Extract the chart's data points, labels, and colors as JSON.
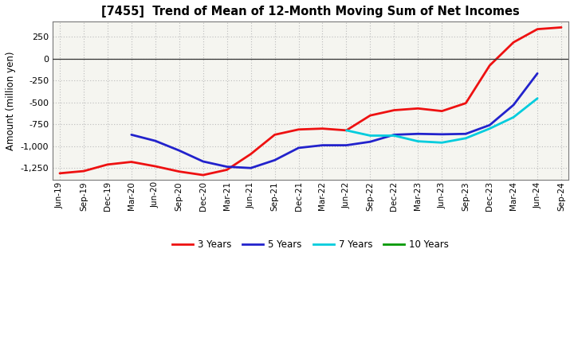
{
  "title": "[7455]  Trend of Mean of 12-Month Moving Sum of Net Incomes",
  "ylabel": "Amount (million yen)",
  "background_color": "#ffffff",
  "plot_bg_color": "#f5f5f0",
  "grid_color": "#bbbbbb",
  "x_labels": [
    "Jun-19",
    "Sep-19",
    "Dec-19",
    "Mar-20",
    "Jun-20",
    "Sep-20",
    "Dec-20",
    "Mar-21",
    "Jun-21",
    "Sep-21",
    "Dec-21",
    "Mar-22",
    "Jun-22",
    "Sep-22",
    "Dec-22",
    "Mar-23",
    "Jun-23",
    "Sep-23",
    "Dec-23",
    "Mar-24",
    "Jun-24",
    "Sep-24"
  ],
  "series": {
    "3 Years": {
      "color": "#ee1111",
      "values": [
        -1310,
        -1285,
        -1210,
        -1180,
        -1230,
        -1290,
        -1330,
        -1270,
        -1090,
        -870,
        -810,
        -800,
        -820,
        -650,
        -590,
        -570,
        -600,
        -510,
        -80,
        185,
        335,
        355
      ]
    },
    "5 Years": {
      "color": "#2222cc",
      "values": [
        null,
        null,
        null,
        -870,
        -940,
        -1050,
        -1175,
        -1235,
        -1250,
        -1160,
        -1020,
        -990,
        -990,
        -950,
        -870,
        -860,
        -865,
        -860,
        -760,
        -530,
        -170,
        null
      ]
    },
    "7 Years": {
      "color": "#00ccdd",
      "values": [
        null,
        null,
        null,
        null,
        null,
        null,
        null,
        null,
        null,
        null,
        null,
        null,
        -820,
        -880,
        -880,
        -945,
        -960,
        -910,
        -800,
        -670,
        -455,
        null
      ]
    },
    "10 Years": {
      "color": "#009900",
      "values": [
        null,
        null,
        null,
        null,
        null,
        null,
        null,
        null,
        null,
        null,
        null,
        null,
        null,
        null,
        null,
        null,
        null,
        null,
        null,
        null,
        null,
        null
      ]
    }
  },
  "ylim": [
    -1380,
    420
  ],
  "yticks": [
    -1250,
    -1000,
    -750,
    -500,
    -250,
    0,
    250
  ],
  "legend_labels": [
    "3 Years",
    "5 Years",
    "7 Years",
    "10 Years"
  ],
  "legend_colors": [
    "#ee1111",
    "#2222cc",
    "#00ccdd",
    "#009900"
  ]
}
